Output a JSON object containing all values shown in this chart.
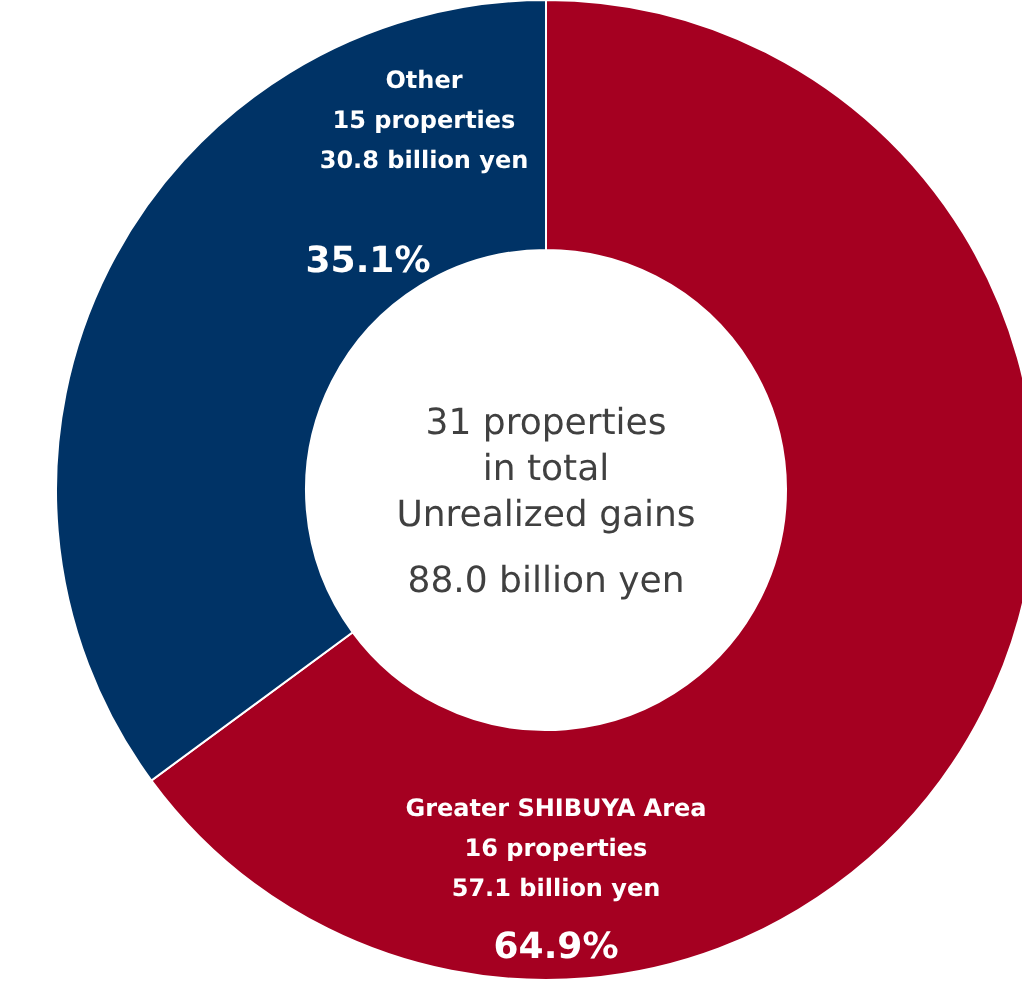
{
  "chart_data": {
    "type": "donut",
    "categories": [
      "Greater SHIBUYA Area",
      "Other"
    ],
    "values": [
      64.9,
      35.1
    ],
    "colors": [
      "#a50021",
      "#003366"
    ],
    "value_labels": [
      "64.9%",
      "35.1%"
    ],
    "annotations": [
      {
        "text": "16 properties",
        "x": "Greater SHIBUYA Area"
      },
      {
        "text": "57.1 billion yen",
        "x": "Greater SHIBUYA Area"
      },
      {
        "text": "15 properties",
        "x": "Other"
      },
      {
        "text": "30.8 billion yen",
        "x": "Other"
      },
      "31 properties",
      "in total",
      "Unrealized gains",
      "88.0 billion yen"
    ]
  }
}
